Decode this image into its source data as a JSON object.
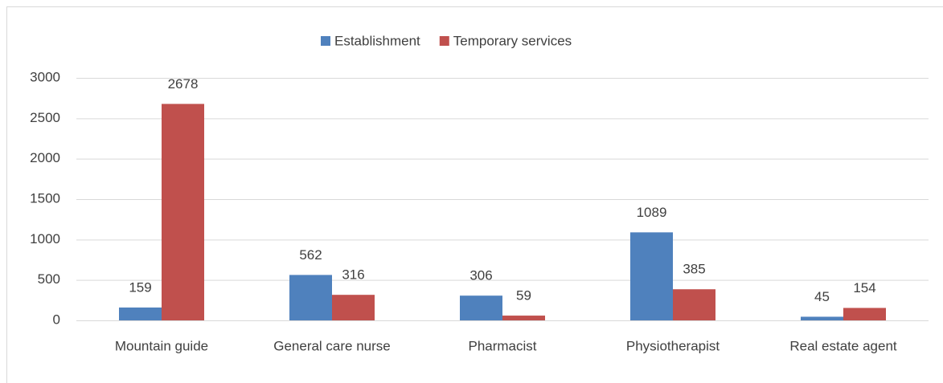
{
  "chart_data": {
    "type": "bar",
    "categories": [
      "Mountain guide",
      "General care nurse",
      "Pharmacist",
      "Physiotherapist",
      "Real estate agent"
    ],
    "series": [
      {
        "name": "Establishment",
        "color": "#4f81bd",
        "values": [
          159,
          562,
          306,
          1089,
          45
        ]
      },
      {
        "name": "Temporary services",
        "color": "#c0504d",
        "values": [
          2678,
          316,
          59,
          385,
          154
        ]
      }
    ],
    "ylim": [
      0,
      3000
    ],
    "yticks": [
      0,
      500,
      1000,
      1500,
      2000,
      2500,
      3000
    ],
    "grid": true,
    "legend": "top"
  }
}
